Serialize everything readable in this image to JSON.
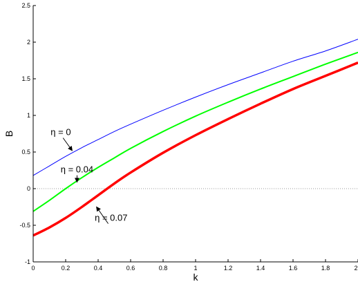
{
  "chart_data": {
    "type": "line",
    "title": "",
    "xlabel": "k",
    "ylabel": "B",
    "xlim": [
      0,
      2
    ],
    "ylim": [
      -1,
      2.5
    ],
    "xticks": [
      0,
      0.2,
      0.4,
      0.6,
      0.8,
      1,
      1.2,
      1.4,
      1.6,
      1.8,
      2
    ],
    "xtick_labels": [
      "0",
      "0.2",
      "0.4",
      "0.6",
      "0.8",
      "1",
      "1.2",
      "1.4",
      "1.6",
      "1.8",
      "2"
    ],
    "yticks": [
      -1,
      -0.5,
      0,
      0.5,
      1,
      1.5,
      2,
      2.5
    ],
    "ytick_labels": [
      "-1",
      "-0.5",
      "0",
      "0.5",
      "1",
      "1.5",
      "2",
      "2.5"
    ],
    "grid": false,
    "legend": "none",
    "zero_line": {
      "y": 0,
      "style": "dotted",
      "color": "#999999"
    },
    "series": [
      {
        "color": "#0000ff",
        "width": 1,
        "x": [
          0,
          0.1,
          0.2,
          0.3,
          0.4,
          0.5,
          0.6,
          0.8,
          1.0,
          1.2,
          1.4,
          1.6,
          1.8,
          2.0
        ],
        "y": [
          0.18,
          0.31,
          0.44,
          0.56,
          0.67,
          0.78,
          0.88,
          1.07,
          1.25,
          1.42,
          1.58,
          1.74,
          1.88,
          2.04
        ]
      },
      {
        "color": "#00ff00",
        "width": 2,
        "x": [
          0,
          0.1,
          0.2,
          0.3,
          0.4,
          0.5,
          0.6,
          0.8,
          1.0,
          1.2,
          1.4,
          1.6,
          1.8,
          2.0
        ],
        "y": [
          -0.31,
          -0.16,
          0.0,
          0.15,
          0.29,
          0.42,
          0.55,
          0.78,
          0.99,
          1.18,
          1.36,
          1.53,
          1.7,
          1.86
        ]
      },
      {
        "color": "#ff0000",
        "width": 3.5,
        "x": [
          0,
          0.1,
          0.2,
          0.3,
          0.4,
          0.5,
          0.6,
          0.8,
          1.0,
          1.2,
          1.4,
          1.6,
          1.8,
          2.0
        ],
        "y": [
          -0.64,
          -0.53,
          -0.4,
          -0.25,
          -0.09,
          0.07,
          0.22,
          0.49,
          0.73,
          0.95,
          1.16,
          1.36,
          1.54,
          1.72
        ]
      }
    ],
    "annotations": [
      {
        "text": "η = 0",
        "x": 0.17,
        "y": 0.73,
        "arrow_to": [
          0.24,
          0.52
        ]
      },
      {
        "text": "η = 0.04",
        "x": 0.27,
        "y": 0.22,
        "arrow_to": [
          0.27,
          0.09
        ]
      },
      {
        "text": "η = 0.07",
        "x": 0.48,
        "y": -0.44,
        "arrow_to": [
          0.39,
          -0.25
        ]
      }
    ]
  }
}
